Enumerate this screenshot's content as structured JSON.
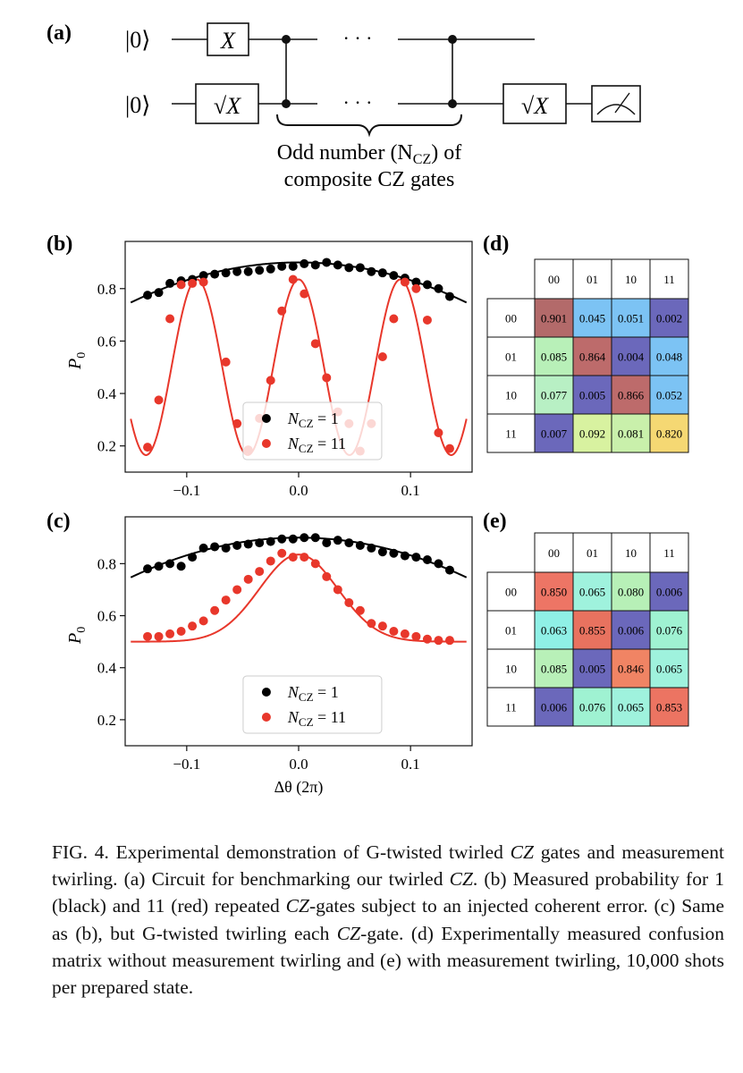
{
  "panel_labels": {
    "a": "(a)",
    "b": "(b)",
    "c": "(c)",
    "d": "(d)",
    "e": "(e)"
  },
  "circuit": {
    "ket_top": "|0⟩",
    "ket_bottom": "|0⟩",
    "gate_x": "X",
    "gate_sqrt_x": "√X",
    "gate_sqrt_x_end": "√X",
    "ellipsis": "· · ·",
    "brace_line1": "Odd number (N",
    "brace_sub": "CZ",
    "brace_line1_end": ") of",
    "brace_line2": "composite CZ gates"
  },
  "chart_data": [
    {
      "type": "scatter",
      "panel": "b",
      "xlabel": "",
      "ylabel": "P0",
      "xlim": [
        -0.155,
        0.155
      ],
      "ylim": [
        0.1,
        0.98
      ],
      "xticks": [
        -0.1,
        0.0,
        0.1
      ],
      "xtick_labels": [
        "−0.1",
        "0.0",
        "0.1"
      ],
      "yticks": [
        0.2,
        0.4,
        0.6,
        0.8
      ],
      "ytick_labels": [
        "0.2",
        "0.4",
        "0.6",
        "0.8"
      ],
      "legend": [
        "N_CZ = 1",
        "N_CZ = 11"
      ],
      "legend_position": "lower-center",
      "series": [
        {
          "name": "N_CZ = 1",
          "color": "#000000",
          "x": [
            -0.135,
            -0.125,
            -0.115,
            -0.105,
            -0.095,
            -0.085,
            -0.075,
            -0.065,
            -0.055,
            -0.045,
            -0.035,
            -0.025,
            -0.015,
            -0.005,
            0.005,
            0.015,
            0.025,
            0.035,
            0.045,
            0.055,
            0.065,
            0.075,
            0.085,
            0.095,
            0.105,
            0.115,
            0.125,
            0.135
          ],
          "y": [
            0.775,
            0.785,
            0.82,
            0.83,
            0.835,
            0.85,
            0.855,
            0.86,
            0.865,
            0.865,
            0.87,
            0.875,
            0.885,
            0.885,
            0.895,
            0.89,
            0.9,
            0.89,
            0.88,
            0.88,
            0.865,
            0.86,
            0.85,
            0.84,
            0.825,
            0.815,
            0.8,
            0.77
          ]
        },
        {
          "name": "N_CZ = 11",
          "color": "#e8372b",
          "x": [
            -0.135,
            -0.125,
            -0.115,
            -0.105,
            -0.095,
            -0.085,
            -0.065,
            -0.055,
            -0.045,
            -0.035,
            -0.025,
            -0.015,
            -0.005,
            0.005,
            0.015,
            0.025,
            0.035,
            0.045,
            0.055,
            0.065,
            0.075,
            0.085,
            0.095,
            0.105,
            0.115,
            0.125,
            0.135
          ],
          "y": [
            0.195,
            0.375,
            0.685,
            0.815,
            0.82,
            0.825,
            0.52,
            0.285,
            0.185,
            0.305,
            0.45,
            0.715,
            0.835,
            0.78,
            0.59,
            0.46,
            0.33,
            0.285,
            0.18,
            0.285,
            0.54,
            0.685,
            0.825,
            0.8,
            0.68,
            0.25,
            0.19
          ]
        }
      ],
      "fits": [
        {
          "name": "N_CZ = 1 fit",
          "color": "#000000",
          "model": "0.90 - 6.8*x^2"
        },
        {
          "name": "N_CZ = 11 fit",
          "color": "#e8372b",
          "model": "0.50 + 0.335*cos(2*pi*11*x)"
        }
      ]
    },
    {
      "type": "scatter",
      "panel": "c",
      "xlabel": "Δθ (2π)",
      "ylabel": "P0",
      "xlim": [
        -0.155,
        0.155
      ],
      "ylim": [
        0.1,
        0.98
      ],
      "xticks": [
        -0.1,
        0.0,
        0.1
      ],
      "xtick_labels": [
        "−0.1",
        "0.0",
        "0.1"
      ],
      "yticks": [
        0.2,
        0.4,
        0.6,
        0.8
      ],
      "ytick_labels": [
        "0.2",
        "0.4",
        "0.6",
        "0.8"
      ],
      "legend": [
        "N_CZ = 1",
        "N_CZ = 11"
      ],
      "legend_position": "lower-center",
      "series": [
        {
          "name": "N_CZ = 1",
          "color": "#000000",
          "x": [
            -0.135,
            -0.125,
            -0.115,
            -0.105,
            -0.095,
            -0.085,
            -0.075,
            -0.065,
            -0.055,
            -0.045,
            -0.035,
            -0.025,
            -0.015,
            -0.005,
            0.005,
            0.015,
            0.025,
            0.035,
            0.045,
            0.055,
            0.065,
            0.075,
            0.085,
            0.095,
            0.105,
            0.115,
            0.125,
            0.135
          ],
          "y": [
            0.78,
            0.79,
            0.8,
            0.79,
            0.825,
            0.86,
            0.865,
            0.86,
            0.87,
            0.875,
            0.88,
            0.885,
            0.895,
            0.895,
            0.9,
            0.9,
            0.88,
            0.89,
            0.88,
            0.87,
            0.86,
            0.845,
            0.84,
            0.83,
            0.825,
            0.815,
            0.8,
            0.775
          ]
        },
        {
          "name": "N_CZ = 11",
          "color": "#e8372b",
          "x": [
            -0.135,
            -0.125,
            -0.115,
            -0.105,
            -0.095,
            -0.085,
            -0.075,
            -0.065,
            -0.055,
            -0.045,
            -0.035,
            -0.025,
            -0.015,
            -0.005,
            0.005,
            0.015,
            0.025,
            0.035,
            0.045,
            0.055,
            0.065,
            0.075,
            0.085,
            0.095,
            0.105,
            0.115,
            0.125,
            0.135
          ],
          "y": [
            0.52,
            0.52,
            0.53,
            0.54,
            0.56,
            0.58,
            0.62,
            0.66,
            0.7,
            0.74,
            0.77,
            0.81,
            0.84,
            0.825,
            0.825,
            0.8,
            0.75,
            0.7,
            0.65,
            0.62,
            0.57,
            0.56,
            0.54,
            0.53,
            0.52,
            0.51,
            0.505,
            0.505
          ]
        }
      ],
      "fits": [
        {
          "name": "N_CZ = 1 fit",
          "color": "#000000",
          "model": "0.90 - 6.8*x^2"
        },
        {
          "name": "N_CZ = 11 fit",
          "color": "#e8372b",
          "model": "0.50 + 0.335*exp(-x^2/(2*0.035^2))"
        }
      ]
    },
    {
      "type": "heatmap",
      "panel": "d",
      "col_labels": [
        "00",
        "01",
        "10",
        "11"
      ],
      "row_labels": [
        "00",
        "01",
        "10",
        "11"
      ],
      "values": [
        [
          "0.901",
          "0.045",
          "0.051",
          "0.002"
        ],
        [
          "0.085",
          "0.864",
          "0.004",
          "0.048"
        ],
        [
          "0.077",
          "0.005",
          "0.866",
          "0.052"
        ],
        [
          "0.007",
          "0.092",
          "0.081",
          "0.820"
        ]
      ],
      "colors": [
        [
          "#b36a6a",
          "#7cc3f4",
          "#7cc3f4",
          "#6b68bb"
        ],
        [
          "#b8f0b8",
          "#bd6b6b",
          "#6b68bb",
          "#7cc3f4"
        ],
        [
          "#b8f0c4",
          "#6b68bb",
          "#bd6b6b",
          "#7cc3f4"
        ],
        [
          "#6b68bb",
          "#d8f2a0",
          "#c9f0ab",
          "#f5d873"
        ]
      ]
    },
    {
      "type": "heatmap",
      "panel": "e",
      "col_labels": [
        "00",
        "01",
        "10",
        "11"
      ],
      "row_labels": [
        "00",
        "01",
        "10",
        "11"
      ],
      "values": [
        [
          "0.850",
          "0.065",
          "0.080",
          "0.006"
        ],
        [
          "0.063",
          "0.855",
          "0.006",
          "0.076"
        ],
        [
          "0.085",
          "0.005",
          "0.846",
          "0.065"
        ],
        [
          "0.006",
          "0.076",
          "0.065",
          "0.853"
        ]
      ],
      "colors": [
        [
          "#ed7565",
          "#9ff2dd",
          "#b7f0b7",
          "#6b68bb"
        ],
        [
          "#8ff0e6",
          "#e8725f",
          "#6b68bb",
          "#9ff2d2"
        ],
        [
          "#b8f0b8",
          "#6b68bb",
          "#f08464",
          "#9ff2dd"
        ],
        [
          "#6b68bb",
          "#9ff2d2",
          "#9ff2dd",
          "#ec7462"
        ]
      ]
    }
  ],
  "caption": {
    "p1": "FIG. 4. Experimental demonstration of G-twisted twirled ",
    "cz1": "CZ",
    "p2": " gates and measurement twirling. (a) Circuit for benchmarking our twirled ",
    "cz2": "CZ",
    "p3": ". (b) Measured probability for 1 (black) and 11 (red) repeated ",
    "cz3": "CZ",
    "p4": "-gates subject to an injected coherent error. (c) Same as (b), but G-twisted twirling each ",
    "cz4": "CZ",
    "p5": "-gate. (d) Experimentally measured confusion matrix without measurement twirling and (e) with measurement twirling, 10,000 shots per prepared state."
  }
}
